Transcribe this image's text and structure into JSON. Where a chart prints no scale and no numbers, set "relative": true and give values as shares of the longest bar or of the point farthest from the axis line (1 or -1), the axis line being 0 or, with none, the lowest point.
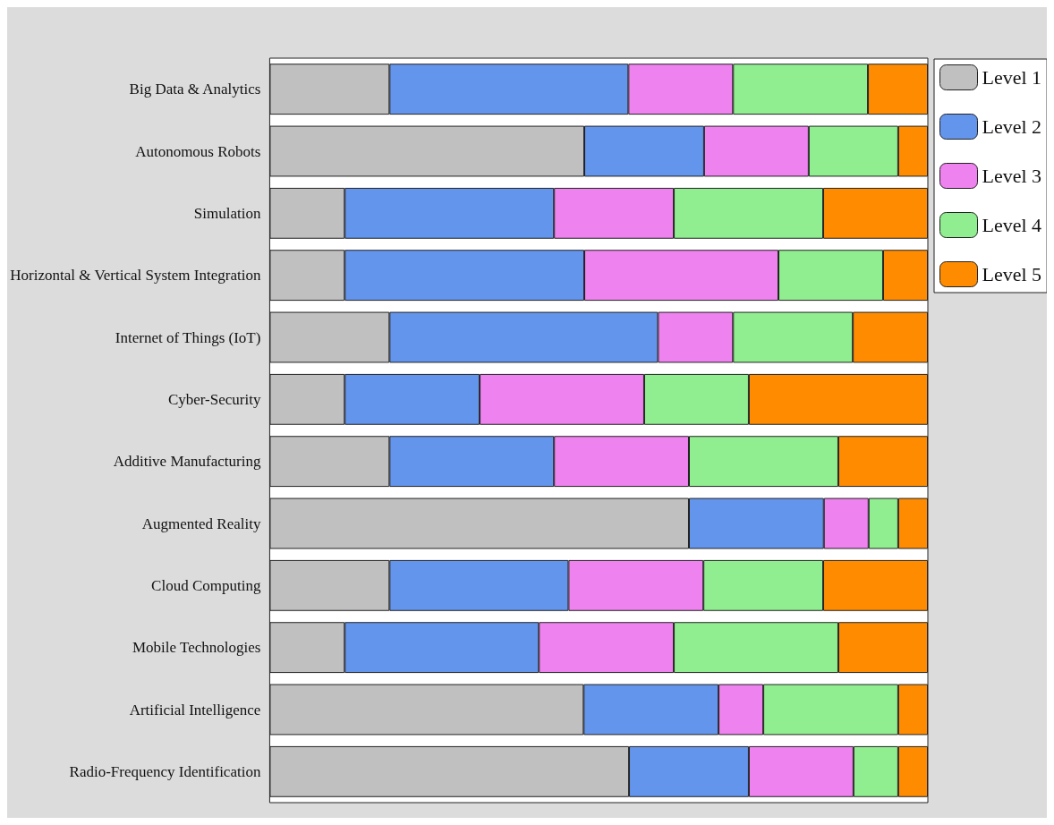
{
  "chart_data": {
    "type": "bar",
    "orientation": "horizontal",
    "stacked": true,
    "relative": true,
    "legend": "top right",
    "categories": [
      "Big Data & Analytics",
      "Autonomous Robots",
      "Simulation",
      "Horizontal & Vertical System Integration",
      "Internet of Things (IoT)",
      "Cyber-Security",
      "Additive Manufacturing",
      "Augmented Reality",
      "Cloud Computing",
      "Mobile Technologies",
      "Artificial Intelligence",
      "Radio-Frequency Identification"
    ],
    "series": [
      {
        "name": "Level 1",
        "color": "#c0c0c0",
        "values": [
          0.182,
          0.478,
          0.114,
          0.114,
          0.182,
          0.114,
          0.182,
          0.637,
          0.182,
          0.114,
          0.477,
          0.546
        ]
      },
      {
        "name": "Level 2",
        "color": "#6495ed",
        "values": [
          0.363,
          0.182,
          0.318,
          0.364,
          0.408,
          0.205,
          0.25,
          0.205,
          0.272,
          0.295,
          0.205,
          0.182
        ]
      },
      {
        "name": "Level 3",
        "color": "#ee82ee",
        "values": [
          0.159,
          0.159,
          0.182,
          0.295,
          0.114,
          0.25,
          0.205,
          0.068,
          0.205,
          0.205,
          0.068,
          0.159
        ]
      },
      {
        "name": "Level 4",
        "color": "#90ee90",
        "values": [
          0.205,
          0.136,
          0.227,
          0.159,
          0.182,
          0.159,
          0.227,
          0.045,
          0.182,
          0.25,
          0.205,
          0.068
        ]
      },
      {
        "name": "Level 5",
        "color": "#ff8c00",
        "values": [
          0.091,
          0.045,
          0.159,
          0.068,
          0.114,
          0.272,
          0.136,
          0.045,
          0.159,
          0.136,
          0.045,
          0.045
        ]
      }
    ]
  }
}
